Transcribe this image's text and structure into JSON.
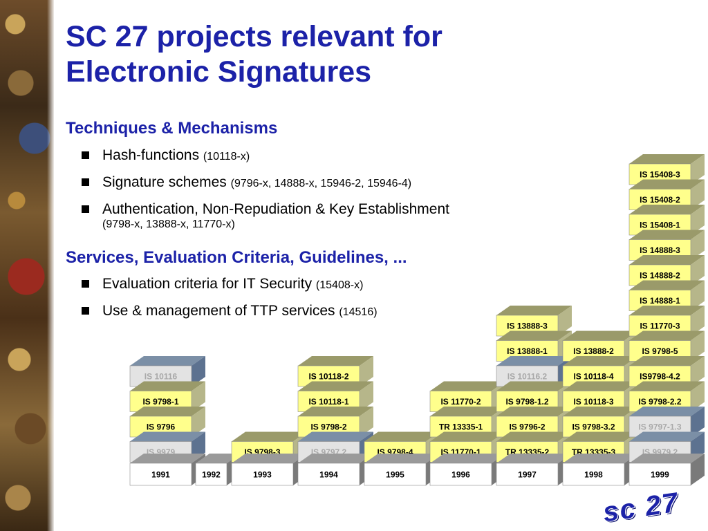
{
  "title": "SC 27 projects relevant for Electronic Signatures",
  "sections": [
    {
      "heading": "Techniques & Mechanisms",
      "bullets": [
        {
          "text": "Hash-functions",
          "note": "(10118-x)"
        },
        {
          "text": "Signature schemes",
          "note": "(9796-x, 14888-x, 15946-2, 15946-4)"
        },
        {
          "text": "Authentication, Non-Repudiation & Key Establishment",
          "note": "(9798-x, 13888-x, 11770-x)"
        }
      ]
    },
    {
      "heading": "Services, Evaluation Criteria, Guidelines, ...",
      "bullets": [
        {
          "text": "Evaluation criteria for IT Security",
          "note": "(15408-x)"
        },
        {
          "text": "Use & management of TTP services",
          "note": "(14516)"
        }
      ]
    }
  ],
  "logo_text": "sc 27",
  "colors": {
    "title": "#1c22a8",
    "published": "#ffff8c",
    "withdrawn": "#e3e3e3",
    "year": "#ffffff"
  },
  "chart_data": {
    "type": "stacked-blocks",
    "years": [
      "1991",
      "1992",
      "1993",
      "1994",
      "1995",
      "1996",
      "1997",
      "1998",
      "1999"
    ],
    "stacks": [
      [
        {
          "label": "IS 9979",
          "status": "withdrawn"
        },
        {
          "label": "IS 9796",
          "status": "published"
        },
        {
          "label": "IS 9798-1",
          "status": "published"
        },
        {
          "label": "IS 10116",
          "status": "withdrawn"
        }
      ],
      [],
      [
        {
          "label": "IS 9798-3",
          "status": "published"
        }
      ],
      [
        {
          "label": "IS 9797.2",
          "status": "withdrawn"
        },
        {
          "label": "IS 9798-2",
          "status": "published"
        },
        {
          "label": "IS 10118-1",
          "status": "published"
        },
        {
          "label": "IS 10118-2",
          "status": "published"
        }
      ],
      [
        {
          "label": "IS 9798-4",
          "status": "published"
        }
      ],
      [
        {
          "label": "IS 11770-1",
          "status": "published"
        },
        {
          "label": "TR 13335-1",
          "status": "published"
        },
        {
          "label": "IS 11770-2",
          "status": "published"
        }
      ],
      [
        {
          "label": "TR 13335-2",
          "status": "published"
        },
        {
          "label": "IS 9796-2",
          "status": "published"
        },
        {
          "label": "IS 9798-1.2",
          "status": "published"
        },
        {
          "label": "IS 10116.2",
          "status": "withdrawn"
        },
        {
          "label": "IS 13888-1",
          "status": "published"
        },
        {
          "label": "IS 13888-3",
          "status": "published"
        }
      ],
      [
        {
          "label": "TR 13335-3",
          "status": "published"
        },
        {
          "label": "IS 9798-3.2",
          "status": "published"
        },
        {
          "label": "IS 10118-3",
          "status": "published"
        },
        {
          "label": "IS 10118-4",
          "status": "published"
        },
        {
          "label": "IS 13888-2",
          "status": "published"
        }
      ],
      [
        {
          "label": "IS 9979.2",
          "status": "withdrawn"
        },
        {
          "label": "IS 9797-1.3",
          "status": "withdrawn"
        },
        {
          "label": "IS 9798-2.2",
          "status": "published"
        },
        {
          "label": "IS9798-4.2",
          "status": "published"
        },
        {
          "label": "IS 9798-5",
          "status": "published"
        },
        {
          "label": "IS 11770-3",
          "status": "published"
        },
        {
          "label": "IS 14888-1",
          "status": "published"
        },
        {
          "label": "IS 14888-2",
          "status": "published"
        },
        {
          "label": "IS 14888-3",
          "status": "published"
        },
        {
          "label": "IS 15408-1",
          "status": "published"
        },
        {
          "label": "IS 15408-2",
          "status": "published"
        },
        {
          "label": "IS 15408-3",
          "status": "published"
        }
      ]
    ]
  }
}
